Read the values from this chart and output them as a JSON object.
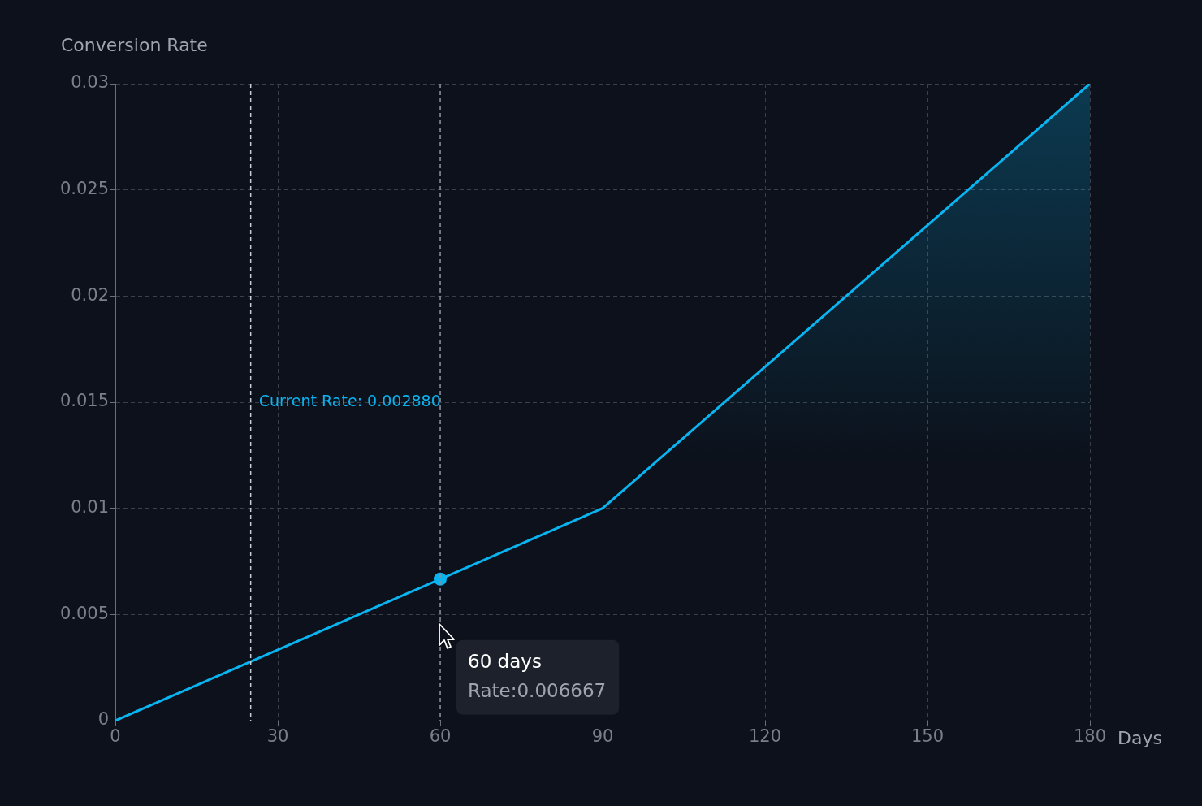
{
  "chart_data": {
    "type": "area",
    "xlabel": "Days",
    "ylabel": "Conversion Rate",
    "xlim": [
      0,
      180
    ],
    "xticks": [
      0,
      30,
      60,
      90,
      120,
      150,
      180
    ],
    "ylim": [
      0,
      0.03
    ],
    "yticks": [
      0,
      0.005,
      0.01,
      0.015,
      0.02,
      0.025,
      0.03
    ],
    "grid": true,
    "legend": false,
    "marker": "none",
    "line_style": "solid",
    "series": [
      {
        "color": "#0ab4f0",
        "x": [
          0,
          90,
          180
        ],
        "values": [
          0,
          0.01,
          0.03
        ]
      },
      {
        "type": "scatter",
        "color": "#0ab4f0",
        "marker": "circle",
        "x": [
          60
        ],
        "values": [
          0.006667
        ]
      }
    ],
    "ref_lines": [
      {
        "axis": "x",
        "value": 25,
        "color": "#c8ccd4",
        "line_style": "dashed"
      },
      {
        "axis": "x",
        "value": 60,
        "color": "#8a8f99",
        "line_style": "dashed"
      }
    ],
    "annotations": [
      "Current Rate: 0.002880",
      "60 days",
      "Rate:0.006667"
    ]
  }
}
